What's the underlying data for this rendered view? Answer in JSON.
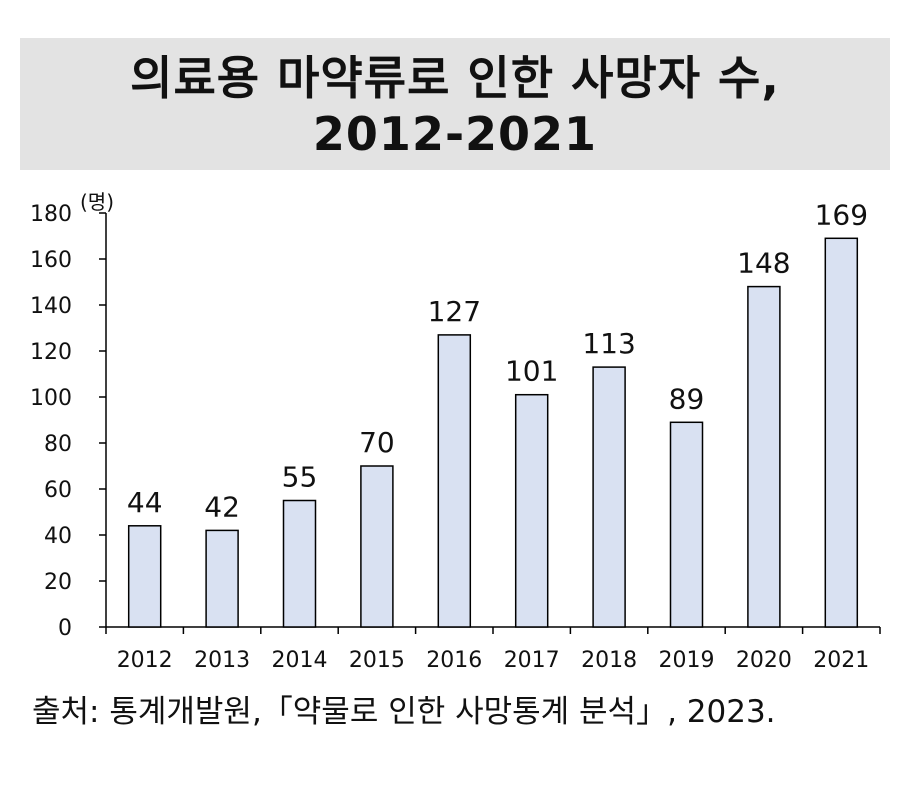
{
  "title": {
    "line1": "의료용 마약류로 인한 사망자 수,",
    "line2": "2012-2021"
  },
  "chart_data": {
    "type": "bar",
    "categories": [
      "2012",
      "2013",
      "2014",
      "2015",
      "2016",
      "2017",
      "2018",
      "2019",
      "2020",
      "2021"
    ],
    "values": [
      44,
      42,
      55,
      70,
      127,
      101,
      113,
      89,
      148,
      169
    ],
    "ylim": [
      0,
      180
    ],
    "yticks": [
      0,
      20,
      40,
      60,
      80,
      100,
      120,
      140,
      160,
      180
    ],
    "ylabel": "(명)",
    "xlabel": "",
    "bar_color": "#d9e1f2",
    "bar_edge_color": "#000000",
    "data_labels": true,
    "grid": false,
    "legend": "none"
  },
  "source": "출처: 통계개발원,「약물로 인한 사망통계 분석」, 2023."
}
